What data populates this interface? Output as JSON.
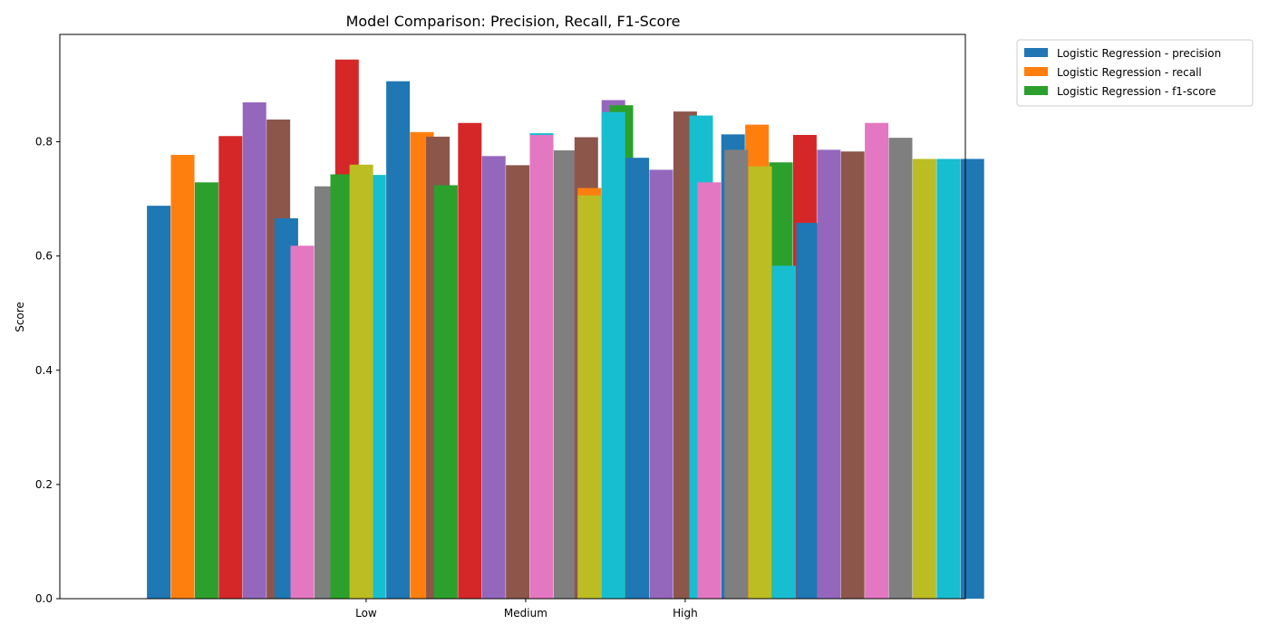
{
  "chart_data": {
    "type": "bar",
    "title": "Model Comparison: Precision, Recall, F1-Score",
    "xlabel": "",
    "ylabel": "Score",
    "ylim": [
      0,
      0.988
    ],
    "yticks": [
      "0.0",
      "0.2",
      "0.4",
      "0.6",
      "0.8"
    ],
    "categories": [
      "Low",
      "Medium",
      "High"
    ],
    "grid": false,
    "legend_position": "outside-top-right",
    "palette": [
      "#1f77b4",
      "#ff7f0e",
      "#2ca02c",
      "#d62728",
      "#9467bd",
      "#8c564b",
      "#e377c2",
      "#7f7f7f",
      "#bcbd22",
      "#17becf"
    ],
    "legend": [
      {
        "label": "Logistic Regression - precision",
        "color": "#1f77b4"
      },
      {
        "label": "Logistic Regression - recall",
        "color": "#ff7f0e"
      },
      {
        "label": "Logistic Regression - f1-score",
        "color": "#2ca02c"
      }
    ],
    "bars": [
      {
        "x": -1.3,
        "value": 0.688,
        "color": "#1f77b4"
      },
      {
        "x": -1.15,
        "value": 0.777,
        "color": "#ff7f0e"
      },
      {
        "x": -1.0,
        "value": 0.729,
        "color": "#2ca02c"
      },
      {
        "x": -0.85,
        "value": 0.81,
        "color": "#d62728"
      },
      {
        "x": -0.7,
        "value": 0.869,
        "color": "#9467bd"
      },
      {
        "x": -0.55,
        "value": 0.839,
        "color": "#8c564b"
      },
      {
        "x": -0.5,
        "value": 0.666,
        "color": "#1f77b4"
      },
      {
        "x": -0.4,
        "value": 0.618,
        "color": "#e377c2"
      },
      {
        "x": -0.25,
        "value": 0.722,
        "color": "#7f7f7f"
      },
      {
        "x": -0.1,
        "value": 0.666,
        "color": "#bcbd22"
      },
      {
        "x": 0.05,
        "value": 0.742,
        "color": "#17becf"
      },
      {
        "x": -0.12,
        "value": 0.944,
        "color": "#d62728"
      },
      {
        "x": -0.15,
        "value": 0.743,
        "color": "#2ca02c"
      },
      {
        "x": -0.03,
        "value": 0.76,
        "color": "#bcbd22"
      },
      {
        "x": 0.2,
        "value": 0.906,
        "color": "#1f77b4"
      },
      {
        "x": 0.35,
        "value": 0.817,
        "color": "#ff7f0e"
      },
      {
        "x": 0.45,
        "value": 0.809,
        "color": "#8c564b"
      },
      {
        "x": 0.5,
        "value": 0.724,
        "color": "#2ca02c"
      },
      {
        "x": 0.65,
        "value": 0.833,
        "color": "#d62728"
      },
      {
        "x": 0.8,
        "value": 0.775,
        "color": "#9467bd"
      },
      {
        "x": 0.95,
        "value": 0.759,
        "color": "#8c564b"
      },
      {
        "x": 1.1,
        "value": 0.815,
        "color": "#17becf"
      },
      {
        "x": 1.1,
        "value": 0.812,
        "color": "#e377c2"
      },
      {
        "x": 1.25,
        "value": 0.785,
        "color": "#7f7f7f"
      },
      {
        "x": 1.38,
        "value": 0.808,
        "color": "#8c564b"
      },
      {
        "x": 1.4,
        "value": 0.719,
        "color": "#ff7f0e"
      },
      {
        "x": 1.4,
        "value": 0.706,
        "color": "#bcbd22"
      },
      {
        "x": 1.55,
        "value": 0.873,
        "color": "#9467bd"
      },
      {
        "x": 1.6,
        "value": 0.864,
        "color": "#2ca02c"
      },
      {
        "x": 1.55,
        "value": 0.852,
        "color": "#17becf"
      },
      {
        "x": 1.7,
        "value": 0.772,
        "color": "#1f77b4"
      },
      {
        "x": 1.85,
        "value": 0.751,
        "color": "#9467bd"
      },
      {
        "x": 2.0,
        "value": 0.853,
        "color": "#8c564b"
      },
      {
        "x": 2.1,
        "value": 0.846,
        "color": "#17becf"
      },
      {
        "x": 2.15,
        "value": 0.729,
        "color": "#e377c2"
      },
      {
        "x": 2.3,
        "value": 0.813,
        "color": "#1f77b4"
      },
      {
        "x": 2.45,
        "value": 0.83,
        "color": "#ff7f0e"
      },
      {
        "x": 2.6,
        "value": 0.764,
        "color": "#2ca02c"
      },
      {
        "x": 2.75,
        "value": 0.812,
        "color": "#d62728"
      },
      {
        "x": 2.32,
        "value": 0.786,
        "color": "#7f7f7f"
      },
      {
        "x": 2.47,
        "value": 0.757,
        "color": "#bcbd22"
      },
      {
        "x": 2.62,
        "value": 0.583,
        "color": "#17becf"
      },
      {
        "x": 2.77,
        "value": 0.658,
        "color": "#1f77b4"
      },
      {
        "x": 2.9,
        "value": 0.786,
        "color": "#9467bd"
      },
      {
        "x": 3.05,
        "value": 0.783,
        "color": "#8c564b"
      },
      {
        "x": 3.2,
        "value": 0.833,
        "color": "#e377c2"
      },
      {
        "x": 3.35,
        "value": 0.807,
        "color": "#7f7f7f"
      },
      {
        "x": 3.5,
        "value": 0.77,
        "color": "#bcbd22"
      },
      {
        "x": 3.65,
        "value": 0.77,
        "color": "#17becf"
      },
      {
        "x": 3.8,
        "value": 0.77,
        "color": "#1f77b4"
      }
    ]
  }
}
